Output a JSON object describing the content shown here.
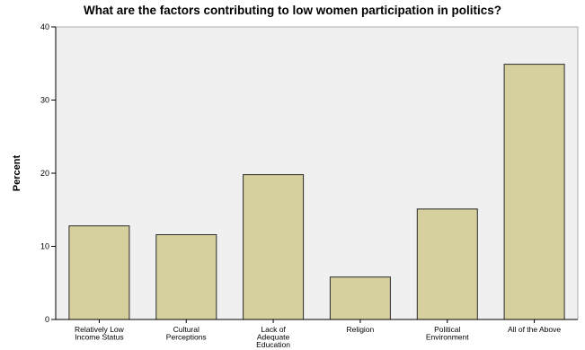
{
  "chart_data": {
    "type": "bar",
    "title": "What are the factors contributing to low women participation in politics?",
    "xlabel": "",
    "ylabel": "Percent",
    "categories": [
      [
        "Relatively Low",
        "Income Status"
      ],
      [
        "Cultural",
        "Perceptions"
      ],
      [
        "Lack of",
        "Adequate",
        "Education"
      ],
      [
        "Religion"
      ],
      [
        "Political",
        "Environment"
      ],
      [
        "All of the Above"
      ]
    ],
    "values": [
      12.8,
      11.6,
      19.8,
      5.8,
      15.1,
      34.9
    ],
    "ylim": [
      0,
      40
    ],
    "yticks": [
      0,
      10,
      20,
      30,
      40
    ],
    "grid": false,
    "colors": {
      "bar_fill": "#d6cf9e",
      "bar_stroke": "#2b2b2b",
      "plot_bg": "#f0f0f0",
      "axis": "#000000"
    }
  }
}
